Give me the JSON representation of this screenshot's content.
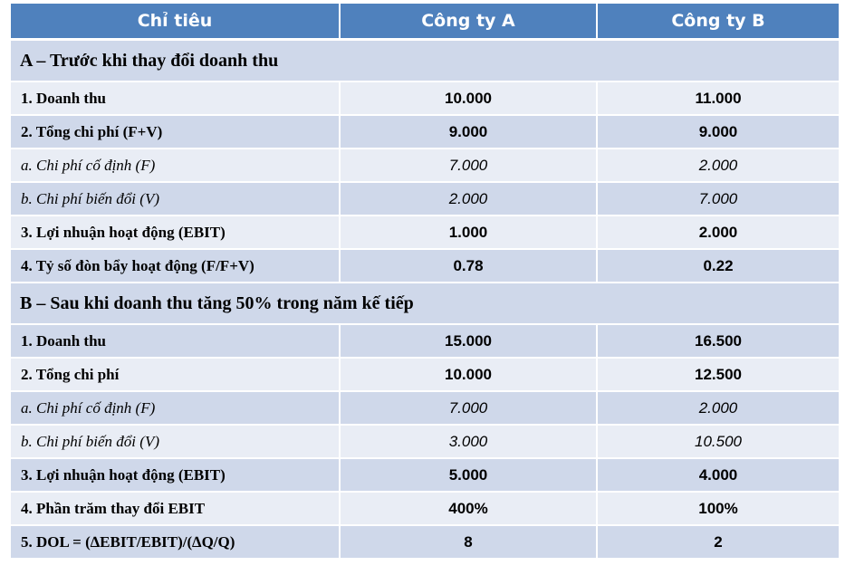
{
  "header": {
    "col0": "Chỉ tiêu",
    "col1": "Công ty A",
    "col2": "Công ty B"
  },
  "section_a": {
    "title": "A – Trước khi thay đổi doanh thu",
    "rows": [
      {
        "label": "1. Doanh thu",
        "a": "10.000",
        "b": "11.000"
      },
      {
        "label": "2. Tổng chi phí (F+V)",
        "a": "9.000",
        "b": "9.000"
      },
      {
        "label": "a. Chi phí cố định (F)",
        "a": "7.000",
        "b": "2.000"
      },
      {
        "label": "b. Chi phí biến đổi (V)",
        "a": "2.000",
        "b": "7.000"
      },
      {
        "label": "3. Lợi nhuận hoạt động (EBIT)",
        "a": "1.000",
        "b": "2.000"
      },
      {
        "label": "4. Tỷ số đòn bẩy hoạt động (F/F+V)",
        "a": "0.78",
        "b": "0.22"
      }
    ]
  },
  "section_b": {
    "title": "B – Sau khi doanh thu tăng 50% trong năm kế tiếp",
    "rows": [
      {
        "label": "1. Doanh thu",
        "a": "15.000",
        "b": "16.500"
      },
      {
        "label": "2. Tổng chi phí",
        "a": "10.000",
        "b": "12.500"
      },
      {
        "label": "a. Chi phí cố định (F)",
        "a": "7.000",
        "b": "2.000"
      },
      {
        "label": "b. Chi phí biến đổi (V)",
        "a": "3.000",
        "b": "10.500"
      },
      {
        "label": "3. Lợi nhuận hoạt động (EBIT)",
        "a": "5.000",
        "b": "4.000"
      },
      {
        "label": "4. Phần trăm thay đổi EBIT",
        "a": "400%",
        "b": "100%"
      },
      {
        "label": "5. DOL = (∆EBIT/EBIT)/(∆Q/Q)",
        "a": "8",
        "b": "2"
      }
    ]
  },
  "colors": {
    "header_bg": "#4f81bd",
    "band_dark": "#cfd8ea",
    "band_light": "#e9edf5"
  }
}
